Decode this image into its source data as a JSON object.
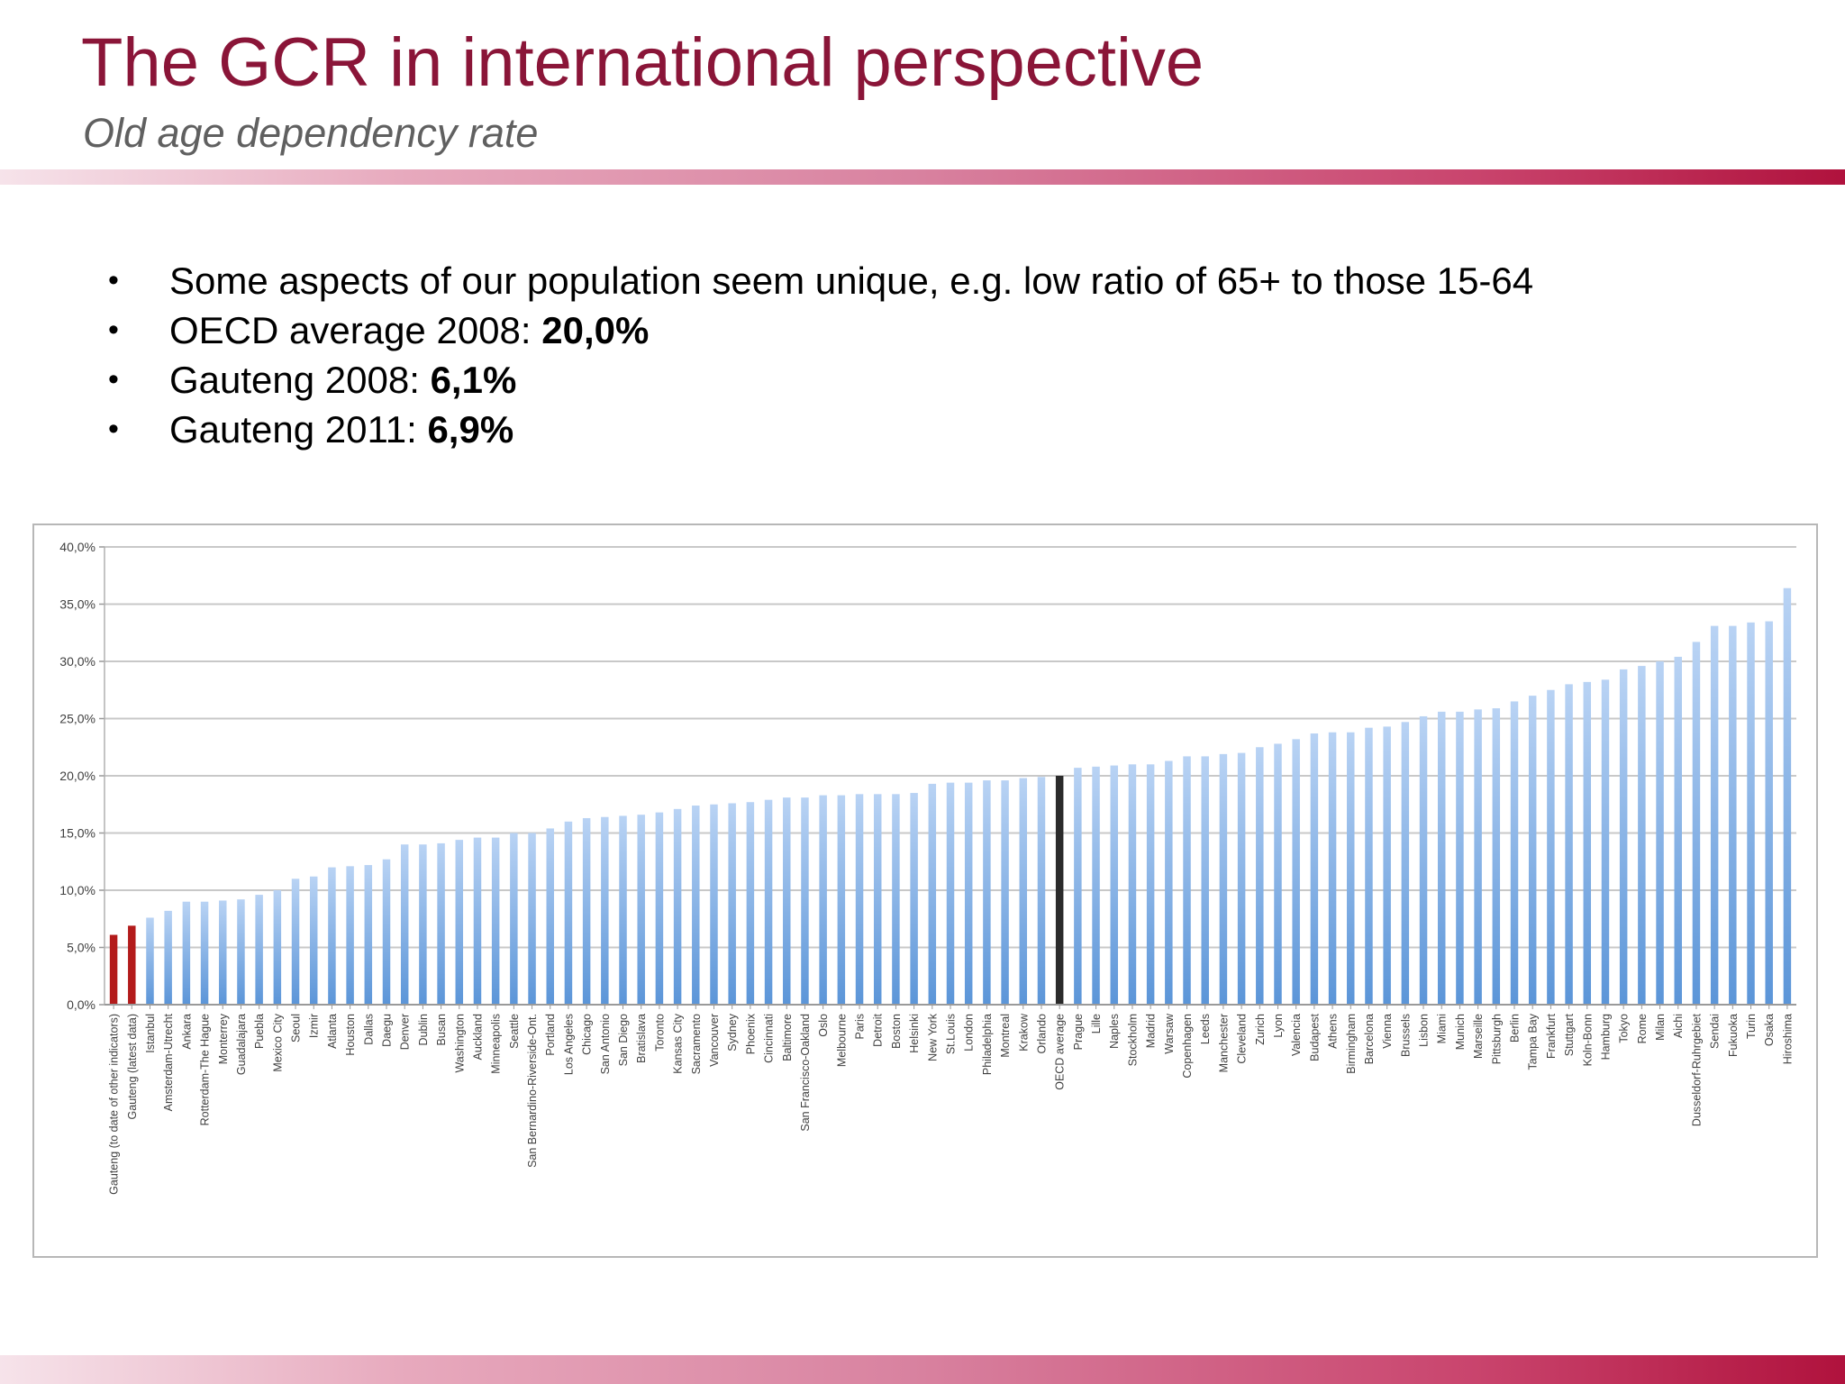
{
  "header": {
    "title": "The GCR in international perspective",
    "subtitle": "Old age dependency rate"
  },
  "bullets": [
    {
      "text": "Some aspects of our population seem unique, e.g. low ratio of 65+ to those 15-64",
      "value": ""
    },
    {
      "text": "OECD average 2008:  ",
      "value": "20,0%"
    },
    {
      "text": "Gauteng 2008: ",
      "value": "6,1%"
    },
    {
      "text": "Gauteng 2011: ",
      "value": "6,9%"
    }
  ],
  "colors": {
    "title": "#8a1538",
    "bar_default": "#8fb8ea",
    "bar_gauteng": "#b31b1b",
    "bar_oecd": "#2b2b2b",
    "grid": "#c8c8c8"
  },
  "chart_data": {
    "type": "bar",
    "ylim": [
      0,
      40
    ],
    "yticks": [
      "0,0%",
      "5,0%",
      "10,0%",
      "15,0%",
      "20,0%",
      "25,0%",
      "30,0%",
      "35,0%",
      "40,0%"
    ],
    "grid": true,
    "categories": [
      "Gauteng (to date of other indicators)",
      "Gauteng (latest data)",
      "Istanbul",
      "Amsterdam-Utrecht",
      "Ankara",
      "Rotterdam-The Hague",
      "Monterrey",
      "Guadalajara",
      "Puebla",
      "Mexico City",
      "Seoul",
      "Izmir",
      "Atlanta",
      "Houston",
      "Dallas",
      "Daegu",
      "Denver",
      "Dublin",
      "Busan",
      "Washington",
      "Auckland",
      "Minneapolis",
      "Seattle",
      "San Bernardino-Riverside-Ont.",
      "Portland",
      "Los Angeles",
      "Chicago",
      "San Antonio",
      "San Diego",
      "Bratislava",
      "Toronto",
      "Kansas City",
      "Sacramento",
      "Vancouver",
      "Sydney",
      "Phoenix",
      "Cincinnati",
      "Baltimore",
      "San Francisco-Oakland",
      "Oslo",
      "Melbourne",
      "Paris",
      "Detroit",
      "Boston",
      "Helsinki",
      "New York",
      "St.Louis",
      "London",
      "Philadelphia",
      "Montreal",
      "Krakow",
      "Orlando",
      "OECD average",
      "Prague",
      "Lille",
      "Naples",
      "Stockholm",
      "Madrid",
      "Warsaw",
      "Copenhagen",
      "Leeds",
      "Manchester",
      "Cleveland",
      "Zurich",
      "Lyon",
      "Valencia",
      "Budapest",
      "Athens",
      "Birmingham",
      "Barcelona",
      "Vienna",
      "Brussels",
      "Lisbon",
      "Miami",
      "Munich",
      "Marseille",
      "Pittsburgh",
      "Berlin",
      "Tampa Bay",
      "Frankfurt",
      "Stuttgart",
      "Koln-Bonn",
      "Hamburg",
      "Tokyo",
      "Rome",
      "Milan",
      "Aichi",
      "Dusseldorf-Ruhrgebiet",
      "Sendai",
      "Fukuoka",
      "Turin",
      "Osaka",
      "Hiroshima"
    ],
    "values": [
      6.1,
      6.9,
      7.6,
      8.2,
      9.0,
      9.0,
      9.1,
      9.2,
      9.6,
      10.0,
      11.0,
      11.2,
      12.0,
      12.1,
      12.2,
      12.7,
      14.0,
      14.0,
      14.1,
      14.4,
      14.6,
      14.6,
      15.0,
      15.0,
      15.4,
      16.0,
      16.3,
      16.4,
      16.5,
      16.6,
      16.8,
      17.1,
      17.4,
      17.5,
      17.6,
      17.7,
      17.9,
      18.1,
      18.1,
      18.3,
      18.3,
      18.4,
      18.4,
      18.4,
      18.5,
      19.3,
      19.4,
      19.4,
      19.6,
      19.6,
      19.8,
      19.9,
      20.0,
      20.7,
      20.8,
      20.9,
      21.0,
      21.0,
      21.3,
      21.7,
      21.7,
      21.9,
      22.0,
      22.5,
      22.8,
      23.2,
      23.7,
      23.8,
      23.8,
      24.2,
      24.3,
      24.7,
      25.2,
      25.6,
      25.6,
      25.8,
      25.9,
      26.5,
      27.0,
      27.5,
      28.0,
      28.2,
      28.4,
      29.3,
      29.6,
      30.0,
      30.4,
      31.7,
      33.1,
      33.1,
      33.4,
      33.5,
      36.4
    ],
    "highlight": {
      "gauteng": [
        0,
        1
      ],
      "oecd": [
        52
      ]
    }
  }
}
